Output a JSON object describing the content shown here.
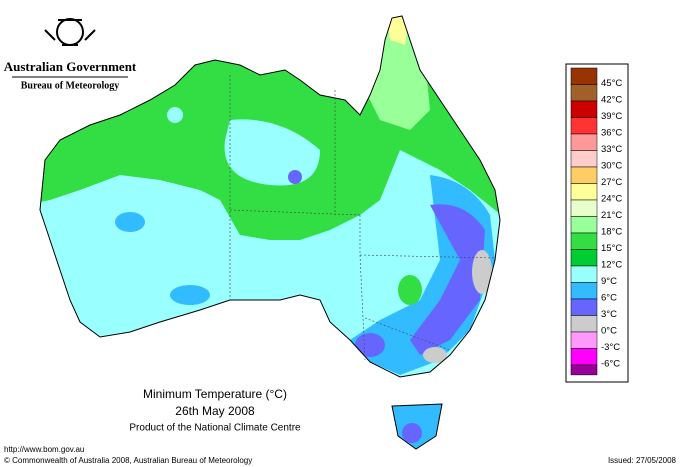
{
  "header": {
    "government": "Australian Government",
    "bureau": "Bureau of Meteorology"
  },
  "map": {
    "title": "Minimum Temperature (°C)",
    "date": "26th May 2008",
    "product": "Product of the National Climate Centre"
  },
  "legend": {
    "labels": [
      "45°C",
      "42°C",
      "39°C",
      "36°C",
      "33°C",
      "30°C",
      "27°C",
      "24°C",
      "21°C",
      "18°C",
      "15°C",
      "12°C",
      "9°C",
      "6°C",
      "3°C",
      "0°C",
      "-3°C",
      "-6°C"
    ],
    "colors": [
      "#993300",
      "#a0602a",
      "#cc0000",
      "#ff3333",
      "#ff9999",
      "#ffcccc",
      "#ffcc66",
      "#ffff99",
      "#e8ffcc",
      "#99ff99",
      "#33dd44",
      "#00cc33",
      "#99ffff",
      "#33bbff",
      "#6666ff",
      "#cccccc",
      "#ff99ff",
      "#ff00ff"
    ],
    "bottom_color": "#990099"
  },
  "footer": {
    "url": "http://www.bom.gov.au",
    "copyright": "© Commonwealth of Australia 2008, Australian Bureau of Meteorology",
    "issued": "Issued: 27/05/2008"
  }
}
